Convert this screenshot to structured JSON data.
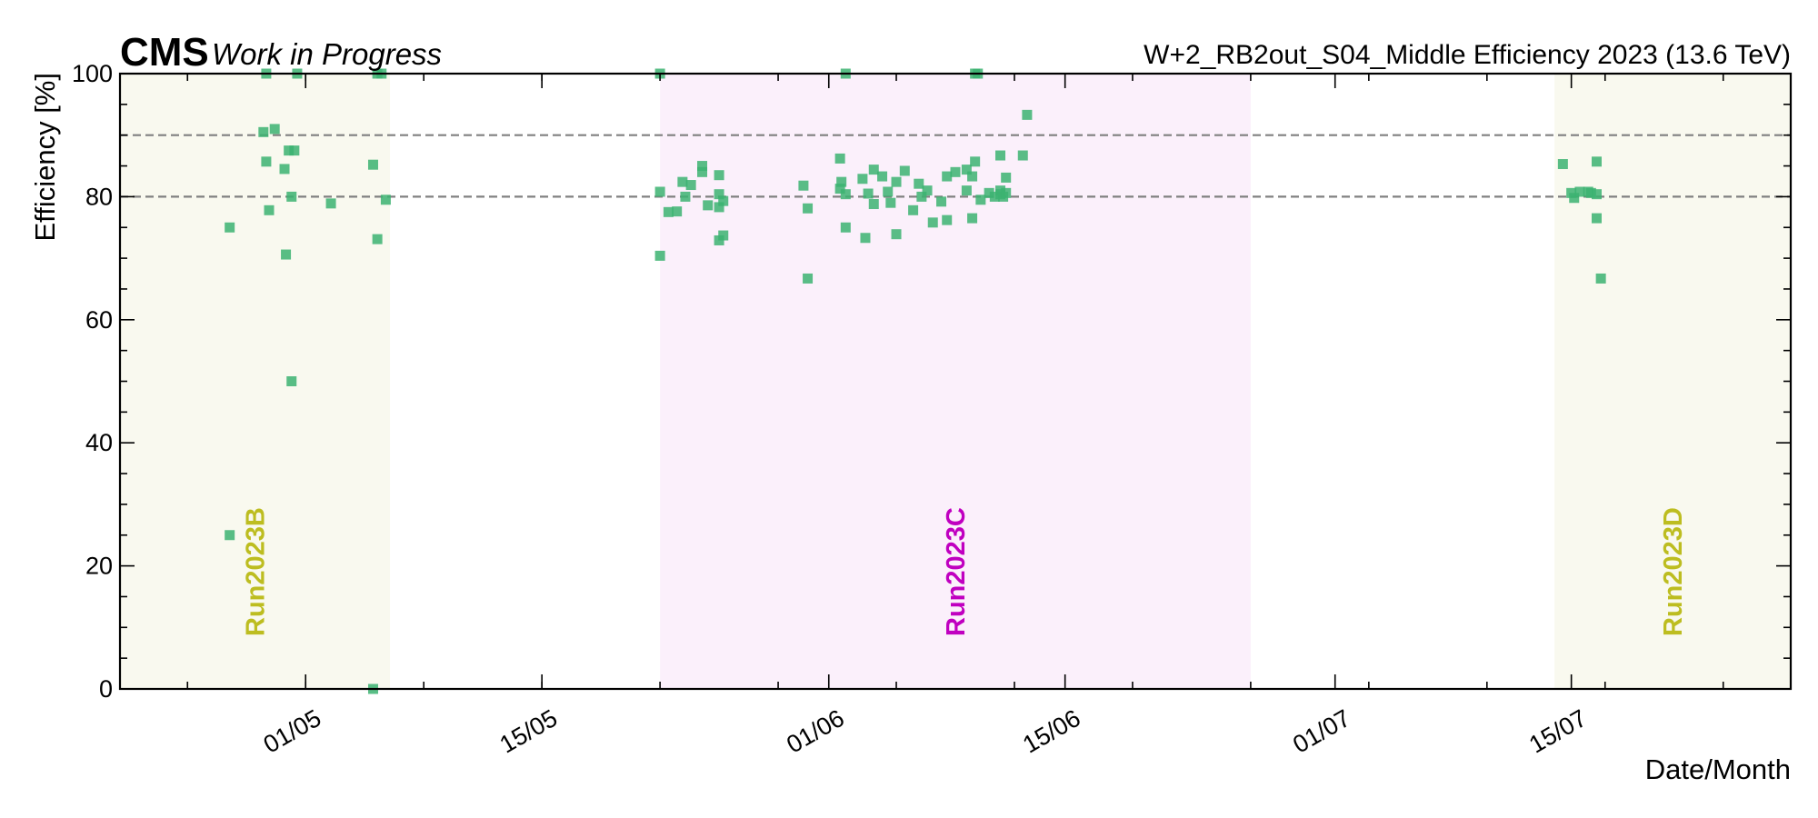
{
  "chart_data": {
    "type": "scatter",
    "experiment": "CMS",
    "experiment_status": "Work in Progress",
    "title": "W+2_RB2out_S04_Middle Efficiency 2023 (13.6 TeV)",
    "xlabel": "Date/Month",
    "ylabel": "Efficiency [%]",
    "xlim": [
      "2023-04-20",
      "2023-07-28"
    ],
    "ylim": [
      0,
      100
    ],
    "x_ticks": [
      "2023-05-01",
      "2023-05-15",
      "2023-06-01",
      "2023-06-15",
      "2023-07-01",
      "2023-07-15"
    ],
    "x_tick_labels": [
      "01/05",
      "15/05",
      "01/06",
      "15/06",
      "01/07",
      "15/07"
    ],
    "y_ticks": [
      0,
      20,
      40,
      60,
      80,
      100
    ],
    "y_tick_labels": [
      "0",
      "20",
      "40",
      "60",
      "80",
      "100"
    ],
    "grid": false,
    "reference_lines": [
      {
        "y": 80,
        "style": "dashed",
        "color": "#808080"
      },
      {
        "y": 90,
        "style": "dashed",
        "color": "#808080"
      }
    ],
    "marker_color": "#3cb371",
    "regions": [
      {
        "label": "Run2023B",
        "start": "2023-04-20",
        "end": "2023-05-06",
        "fill": "#f9f9ef",
        "label_color": "#bdbd20"
      },
      {
        "label": "Run2023C",
        "start": "2023-05-22",
        "end": "2023-06-26",
        "fill": "#fbf0fb",
        "label_color": "#c000c0"
      },
      {
        "label": "Run2023D",
        "start": "2023-07-14",
        "end": "2023-07-28",
        "fill": "#f9f9ef",
        "label_color": "#bdbd20"
      }
    ],
    "series": [
      {
        "points": [
          {
            "x": "2023-04-26T12:00",
            "y": 75.0
          },
          {
            "x": "2023-04-26T12:00",
            "y": 25.0
          },
          {
            "x": "2023-04-28T12:00",
            "y": 90.5
          },
          {
            "x": "2023-04-28T16:00",
            "y": 100.0
          },
          {
            "x": "2023-04-28T16:00",
            "y": 85.7
          },
          {
            "x": "2023-04-28T20:00",
            "y": 77.8
          },
          {
            "x": "2023-04-29T04:00",
            "y": 91.0
          },
          {
            "x": "2023-04-29T18:00",
            "y": 84.5
          },
          {
            "x": "2023-04-29T20:00",
            "y": 70.6
          },
          {
            "x": "2023-04-30T00:00",
            "y": 87.5
          },
          {
            "x": "2023-04-30T08:00",
            "y": 87.5
          },
          {
            "x": "2023-04-30T04:00",
            "y": 80.0
          },
          {
            "x": "2023-04-30T04:00",
            "y": 50.0
          },
          {
            "x": "2023-04-30T12:00",
            "y": 100.0
          },
          {
            "x": "2023-05-02T12:00",
            "y": 78.9
          },
          {
            "x": "2023-05-05T06:00",
            "y": 100.0
          },
          {
            "x": "2023-05-05T12:00",
            "y": 100.0
          },
          {
            "x": "2023-05-05T00:00",
            "y": 85.2
          },
          {
            "x": "2023-05-05T06:00",
            "y": 73.1
          },
          {
            "x": "2023-05-05T00:00",
            "y": 0.0
          },
          {
            "x": "2023-05-05T18:00",
            "y": 79.5
          },
          {
            "x": "2023-05-22T00:00",
            "y": 100.0
          },
          {
            "x": "2023-05-22T00:00",
            "y": 80.8
          },
          {
            "x": "2023-05-22T00:00",
            "y": 70.4
          },
          {
            "x": "2023-05-22T12:00",
            "y": 77.5
          },
          {
            "x": "2023-05-23T00:00",
            "y": 77.6
          },
          {
            "x": "2023-05-23T08:00",
            "y": 82.4
          },
          {
            "x": "2023-05-23T12:00",
            "y": 80.0
          },
          {
            "x": "2023-05-23T20:00",
            "y": 81.9
          },
          {
            "x": "2023-05-24T12:00",
            "y": 85.0
          },
          {
            "x": "2023-05-24T12:00",
            "y": 84.0
          },
          {
            "x": "2023-05-24T20:00",
            "y": 78.6
          },
          {
            "x": "2023-05-25T12:00",
            "y": 83.5
          },
          {
            "x": "2023-05-25T12:00",
            "y": 80.4
          },
          {
            "x": "2023-05-25T12:00",
            "y": 78.3
          },
          {
            "x": "2023-05-25T12:00",
            "y": 72.9
          },
          {
            "x": "2023-05-25T18:00",
            "y": 79.3
          },
          {
            "x": "2023-05-25T18:00",
            "y": 73.7
          },
          {
            "x": "2023-05-30T12:00",
            "y": 81.8
          },
          {
            "x": "2023-05-30T18:00",
            "y": 78.1
          },
          {
            "x": "2023-05-30T18:00",
            "y": 66.7
          },
          {
            "x": "2023-06-01T16:00",
            "y": 86.2
          },
          {
            "x": "2023-06-01T18:00",
            "y": 82.4
          },
          {
            "x": "2023-06-02T00:00",
            "y": 100.0
          },
          {
            "x": "2023-06-01T16:00",
            "y": 81.3
          },
          {
            "x": "2023-06-02T00:00",
            "y": 80.4
          },
          {
            "x": "2023-06-02T00:00",
            "y": 75.0
          },
          {
            "x": "2023-06-03T00:00",
            "y": 82.9
          },
          {
            "x": "2023-06-03T04:00",
            "y": 73.3
          },
          {
            "x": "2023-06-03T08:00",
            "y": 80.5
          },
          {
            "x": "2023-06-03T16:00",
            "y": 78.8
          },
          {
            "x": "2023-06-03T16:00",
            "y": 84.4
          },
          {
            "x": "2023-06-04T04:00",
            "y": 83.3
          },
          {
            "x": "2023-06-04T12:00",
            "y": 80.8
          },
          {
            "x": "2023-06-04T16:00",
            "y": 79.0
          },
          {
            "x": "2023-06-05T00:00",
            "y": 82.4
          },
          {
            "x": "2023-06-05T00:00",
            "y": 73.9
          },
          {
            "x": "2023-06-05T12:00",
            "y": 84.2
          },
          {
            "x": "2023-06-06T00:00",
            "y": 77.8
          },
          {
            "x": "2023-06-06T08:00",
            "y": 82.1
          },
          {
            "x": "2023-06-06T12:00",
            "y": 80.0
          },
          {
            "x": "2023-06-06T20:00",
            "y": 81.0
          },
          {
            "x": "2023-06-07T04:00",
            "y": 75.8
          },
          {
            "x": "2023-06-07T16:00",
            "y": 79.2
          },
          {
            "x": "2023-06-08T00:00",
            "y": 83.3
          },
          {
            "x": "2023-06-08T00:00",
            "y": 76.2
          },
          {
            "x": "2023-06-08T12:00",
            "y": 84.0
          },
          {
            "x": "2023-06-09T04:00",
            "y": 84.4
          },
          {
            "x": "2023-06-09T04:00",
            "y": 81.0
          },
          {
            "x": "2023-06-09T12:00",
            "y": 83.3
          },
          {
            "x": "2023-06-09T12:00",
            "y": 76.5
          },
          {
            "x": "2023-06-09T16:00",
            "y": 85.7
          },
          {
            "x": "2023-06-09T16:00",
            "y": 100.0
          },
          {
            "x": "2023-06-09T20:00",
            "y": 100.0
          },
          {
            "x": "2023-06-10T00:00",
            "y": 79.5
          },
          {
            "x": "2023-06-10T12:00",
            "y": 80.6
          },
          {
            "x": "2023-06-10T20:00",
            "y": 80.0
          },
          {
            "x": "2023-06-11T04:00",
            "y": 86.7
          },
          {
            "x": "2023-06-11T04:00",
            "y": 80.4
          },
          {
            "x": "2023-06-11T04:00",
            "y": 81.0
          },
          {
            "x": "2023-06-11T08:00",
            "y": 80.0
          },
          {
            "x": "2023-06-11T12:00",
            "y": 83.1
          },
          {
            "x": "2023-06-11T12:00",
            "y": 80.6
          },
          {
            "x": "2023-06-12T12:00",
            "y": 86.7
          },
          {
            "x": "2023-06-12T18:00",
            "y": 93.3
          },
          {
            "x": "2023-07-14T12:00",
            "y": 85.3
          },
          {
            "x": "2023-07-15T00:00",
            "y": 80.6
          },
          {
            "x": "2023-07-15T04:00",
            "y": 79.8
          },
          {
            "x": "2023-07-15T12:00",
            "y": 80.8
          },
          {
            "x": "2023-07-16T00:00",
            "y": 80.8
          },
          {
            "x": "2023-07-16T04:00",
            "y": 80.6
          },
          {
            "x": "2023-07-16T12:00",
            "y": 85.7
          },
          {
            "x": "2023-07-16T12:00",
            "y": 80.4
          },
          {
            "x": "2023-07-16T12:00",
            "y": 76.5
          },
          {
            "x": "2023-07-16T18:00",
            "y": 66.7
          }
        ]
      }
    ]
  }
}
